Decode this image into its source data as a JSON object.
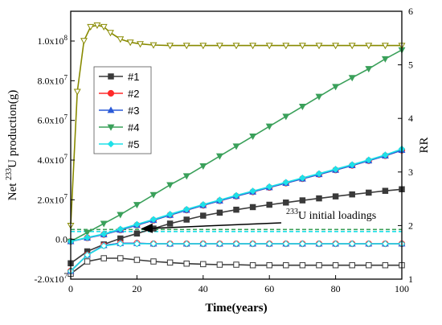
{
  "chart_data": {
    "type": "line",
    "title": "",
    "xlabel": "Time(years)",
    "ylabel": "Net 233U production(g)",
    "ylabel_parts": {
      "prefix": "Net ",
      "sup": "233",
      "suffix": "U production(g)"
    },
    "y2label": "RR",
    "xlim": [
      0,
      100
    ],
    "ylim": [
      -20000000,
      115000000
    ],
    "y2lim": [
      1,
      6
    ],
    "x_ticks": [
      0,
      20,
      40,
      60,
      80,
      100
    ],
    "x_tick_labels": [
      "0",
      "20",
      "40",
      "60",
      "80",
      "100"
    ],
    "y_ticks": [
      -20000000,
      0,
      20000000,
      40000000,
      60000000,
      80000000,
      100000000
    ],
    "y_tick_labels": [
      {
        "base": "-2.0x10",
        "exp": "7"
      },
      {
        "base": "0.0",
        "exp": ""
      },
      {
        "base": "2.0x10",
        "exp": "7"
      },
      {
        "base": "4.0x10",
        "exp": "7"
      },
      {
        "base": "6.0x10",
        "exp": "7"
      },
      {
        "base": "8.0x10",
        "exp": "7"
      },
      {
        "base": "1.0x10",
        "exp": "8"
      }
    ],
    "y2_ticks": [
      1,
      2,
      3,
      4,
      5,
      6
    ],
    "y2_tick_labels": [
      "1",
      "2",
      "3",
      "4",
      "5",
      "6"
    ],
    "legend_placement": "upper-left",
    "legend": [
      {
        "label": "#1",
        "color": "#3a3a3a",
        "marker": "square"
      },
      {
        "label": "#2",
        "color": "#ff2a2a",
        "marker": "circle"
      },
      {
        "label": "#3",
        "color": "#2a5ad8",
        "marker": "triangle-up"
      },
      {
        "label": "#4",
        "color": "#3aa05a",
        "marker": "triangle-down"
      },
      {
        "label": "#5",
        "color": "#1ee0e8",
        "marker": "diamond"
      }
    ],
    "series": [
      {
        "name": "#1",
        "axis": "left",
        "color": "#3a3a3a",
        "marker": "square",
        "fill": true,
        "x": [
          0,
          5,
          10,
          15,
          20,
          25,
          30,
          35,
          40,
          45,
          50,
          55,
          60,
          65,
          70,
          75,
          80,
          85,
          90,
          95,
          100
        ],
        "y": [
          -12000000,
          -6000000,
          -2500000,
          500000,
          3000000,
          5500000,
          8000000,
          10000000,
          12000000,
          13500000,
          15000000,
          16300000,
          17500000,
          18600000,
          19700000,
          20700000,
          21700000,
          22700000,
          23600000,
          24500000,
          25300000
        ]
      },
      {
        "name": "#2",
        "axis": "left",
        "color": "#ff2a2a",
        "marker": "circle",
        "fill": true,
        "x": [
          0,
          5,
          10,
          15,
          20,
          25,
          30,
          35,
          40,
          45,
          50,
          55,
          60,
          65,
          70,
          75,
          80,
          85,
          90,
          95,
          100
        ],
        "y": [
          -1000000,
          800000,
          2500000,
          4800000,
          7200000,
          9700000,
          12300000,
          14800000,
          17200000,
          19500000,
          21800000,
          24000000,
          26200000,
          28400000,
          30600000,
          32800000,
          35000000,
          37300000,
          39700000,
          42200000,
          45000000
        ]
      },
      {
        "name": "#3",
        "axis": "left",
        "color": "#2a5ad8",
        "marker": "triangle-up",
        "fill": true,
        "x": [
          0,
          5,
          10,
          15,
          20,
          25,
          30,
          35,
          40,
          45,
          50,
          55,
          60,
          65,
          70,
          75,
          80,
          85,
          90,
          95,
          100
        ],
        "y": [
          -1000000,
          800000,
          2500000,
          4800000,
          7200000,
          9700000,
          12300000,
          14800000,
          17200000,
          19500000,
          21800000,
          24000000,
          26200000,
          28400000,
          30600000,
          32800000,
          35000000,
          37300000,
          39700000,
          42200000,
          45000000
        ]
      },
      {
        "name": "#4",
        "axis": "left",
        "color": "#3aa05a",
        "marker": "triangle-down",
        "fill": true,
        "x": [
          0,
          5,
          10,
          15,
          20,
          25,
          30,
          35,
          40,
          45,
          50,
          55,
          60,
          65,
          70,
          75,
          80,
          85,
          90,
          95,
          100
        ],
        "y": [
          -1000000,
          3500000,
          8000000,
          12500000,
          17500000,
          22500000,
          27500000,
          32000000,
          37000000,
          42000000,
          47000000,
          52000000,
          57000000,
          62000000,
          67000000,
          72000000,
          77000000,
          81500000,
          86000000,
          91000000,
          95500000
        ]
      },
      {
        "name": "#5",
        "axis": "left",
        "color": "#1ee0e8",
        "marker": "diamond",
        "fill": true,
        "x": [
          0,
          5,
          10,
          15,
          20,
          25,
          30,
          35,
          40,
          45,
          50,
          55,
          60,
          65,
          70,
          75,
          80,
          85,
          90,
          95,
          100
        ],
        "y": [
          -1000000,
          1000000,
          2800000,
          5200000,
          7600000,
          10100000,
          12700000,
          15200000,
          17600000,
          19900000,
          22200000,
          24400000,
          26600000,
          28800000,
          31000000,
          33200000,
          35400000,
          37700000,
          40100000,
          42600000,
          45600000
        ]
      },
      {
        "name": "#1 RR",
        "axis": "right",
        "color": "#3a3a3a",
        "marker": "square",
        "fill": false,
        "x": [
          0,
          5,
          10,
          15,
          20,
          25,
          30,
          35,
          40,
          45,
          50,
          55,
          60,
          65,
          70,
          75,
          80,
          85,
          90,
          95,
          100
        ],
        "y": [
          1.1,
          1.33,
          1.39,
          1.39,
          1.36,
          1.33,
          1.31,
          1.29,
          1.28,
          1.27,
          1.27,
          1.26,
          1.26,
          1.26,
          1.26,
          1.26,
          1.26,
          1.26,
          1.26,
          1.26,
          1.26
        ]
      },
      {
        "name": "#2 RR",
        "axis": "right",
        "color": "#ff2a2a",
        "marker": "circle",
        "fill": false,
        "x": [
          0,
          5,
          10,
          15,
          20,
          25,
          30,
          35,
          40,
          45,
          50,
          55,
          60,
          65,
          70,
          75,
          80,
          85,
          90,
          95,
          100
        ],
        "y": [
          1.15,
          1.45,
          1.63,
          1.67,
          1.67,
          1.66,
          1.66,
          1.66,
          1.66,
          1.66,
          1.66,
          1.66,
          1.66,
          1.66,
          1.66,
          1.66,
          1.66,
          1.66,
          1.66,
          1.66,
          1.66
        ]
      },
      {
        "name": "#3 RR",
        "axis": "right",
        "color": "#2a5ad8",
        "marker": "triangle-up",
        "fill": false,
        "x": [
          0,
          5,
          10,
          15,
          20,
          25,
          30,
          35,
          40,
          45,
          50,
          55,
          60,
          65,
          70,
          75,
          80,
          85,
          90,
          95,
          100
        ],
        "y": [
          1.15,
          1.45,
          1.63,
          1.67,
          1.67,
          1.66,
          1.66,
          1.66,
          1.66,
          1.66,
          1.66,
          1.66,
          1.66,
          1.66,
          1.66,
          1.66,
          1.66,
          1.66,
          1.66,
          1.66,
          1.66
        ]
      },
      {
        "name": "#4 RR",
        "axis": "right",
        "color": "#888a00",
        "marker": "triangle-down",
        "fill": false,
        "x": [
          0,
          2,
          4,
          6,
          8,
          10,
          12,
          15,
          18,
          21,
          25,
          30,
          35,
          40,
          45,
          50,
          55,
          60,
          65,
          70,
          75,
          80,
          85,
          90,
          95,
          100
        ],
        "y": [
          2.0,
          4.5,
          5.45,
          5.71,
          5.74,
          5.71,
          5.6,
          5.48,
          5.42,
          5.39,
          5.37,
          5.36,
          5.36,
          5.36,
          5.36,
          5.36,
          5.36,
          5.36,
          5.36,
          5.36,
          5.36,
          5.36,
          5.36,
          5.36,
          5.36,
          5.36
        ]
      },
      {
        "name": "#5 RR",
        "axis": "right",
        "color": "#1ee0e8",
        "marker": "diamond",
        "fill": false,
        "x": [
          0,
          5,
          10,
          15,
          20,
          25,
          30,
          35,
          40,
          45,
          50,
          55,
          60,
          65,
          70,
          75,
          80,
          85,
          90,
          95,
          100
        ],
        "y": [
          1.15,
          1.45,
          1.62,
          1.66,
          1.66,
          1.66,
          1.66,
          1.66,
          1.66,
          1.66,
          1.66,
          1.66,
          1.66,
          1.66,
          1.66,
          1.66,
          1.66,
          1.66,
          1.66,
          1.66,
          1.66
        ]
      }
    ],
    "reference_lines": [
      {
        "axis": "left",
        "y": 4000000,
        "color": "#1ee0e8",
        "style": "dashed"
      },
      {
        "axis": "left",
        "y": 5000000,
        "color": "#3aa05a",
        "style": "dashed"
      }
    ],
    "annotation": {
      "sup": "233",
      "text": "U initial loadings",
      "arrow_to": {
        "x": 21,
        "y": 5000000
      }
    }
  }
}
